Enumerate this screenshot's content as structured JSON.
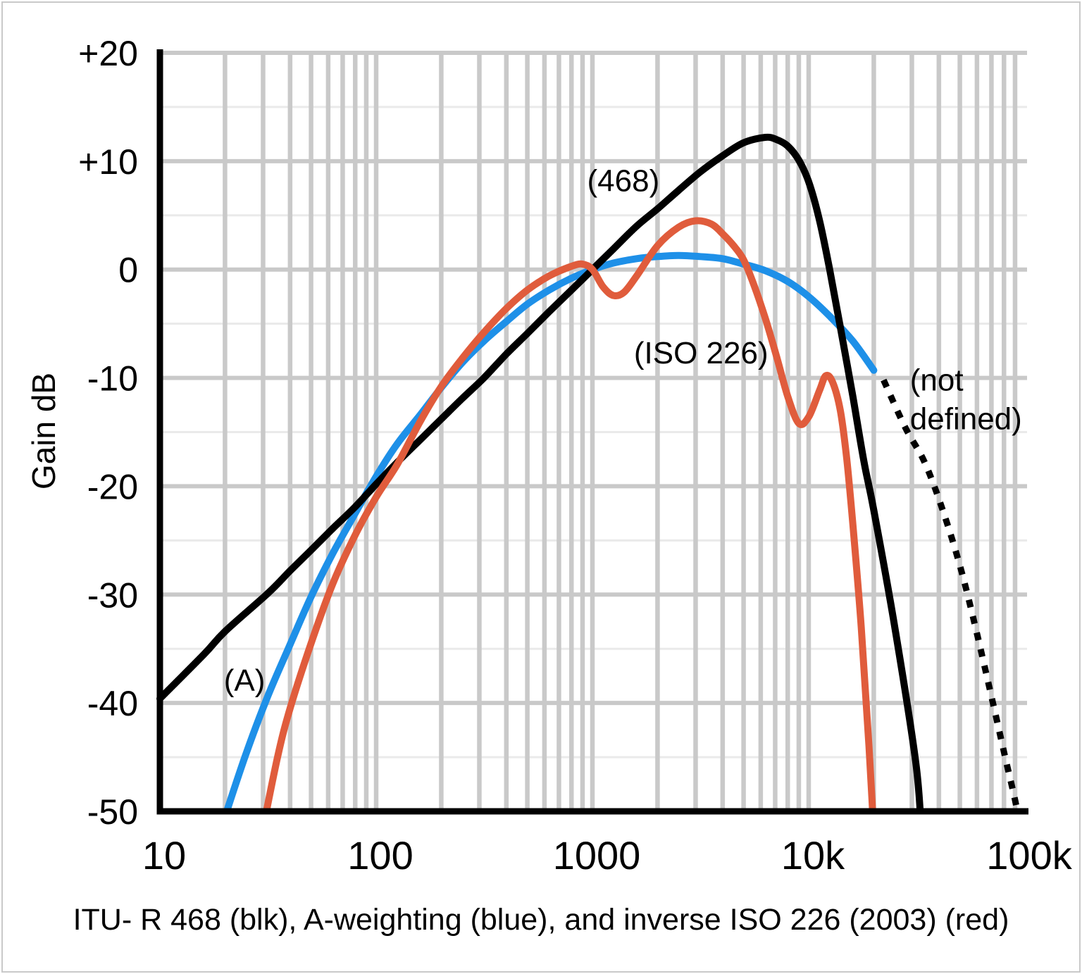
{
  "chart_data": {
    "type": "line",
    "caption": "ITU- R 468 (blk), A-weighting (blue), and inverse ISO 226 (2003) (red)",
    "ylabel": "Gain dB",
    "x_axis": {
      "scale": "log",
      "min": 10,
      "max": 100000,
      "tick_values": [
        10,
        100,
        1000,
        10000,
        100000
      ],
      "tick_labels": [
        "10",
        "100",
        "1000",
        "10k",
        "100k"
      ]
    },
    "y_axis": {
      "min": -50,
      "max": 20,
      "tick_values": [
        20,
        10,
        0,
        -10,
        -20,
        -30,
        -40,
        -50
      ],
      "tick_labels": [
        "+20",
        "+10",
        "0",
        "-10",
        "-20",
        "-30",
        "-40",
        "-50"
      ],
      "minor_values": [
        15,
        5,
        -5,
        -15,
        -25,
        -35,
        -45
      ]
    },
    "grid": {
      "on": true,
      "major_color": "#c9c9c9",
      "minor_color": "#eaeaea"
    },
    "colors": {
      "black": "#000000",
      "blue": "#1e90e8",
      "red": "#e05c3c"
    },
    "series": [
      {
        "id": "a-weighting",
        "name": "A-weighting",
        "color": "#1e90e8",
        "style": "solid",
        "points": [
          [
            19,
            -52
          ],
          [
            20,
            -50.5
          ],
          [
            25,
            -44.7
          ],
          [
            31.5,
            -39.4
          ],
          [
            40,
            -34.6
          ],
          [
            50,
            -30.2
          ],
          [
            63,
            -26.2
          ],
          [
            80,
            -22.5
          ],
          [
            100,
            -19.1
          ],
          [
            125,
            -16.1
          ],
          [
            160,
            -13.4
          ],
          [
            200,
            -10.9
          ],
          [
            250,
            -8.6
          ],
          [
            315,
            -6.6
          ],
          [
            400,
            -4.8
          ],
          [
            500,
            -3.2
          ],
          [
            630,
            -1.9
          ],
          [
            800,
            -0.8
          ],
          [
            1000,
            0
          ],
          [
            1250,
            0.6
          ],
          [
            1600,
            1.0
          ],
          [
            2000,
            1.2
          ],
          [
            2500,
            1.3
          ],
          [
            3150,
            1.2
          ],
          [
            4000,
            1.0
          ],
          [
            5000,
            0.5
          ],
          [
            6300,
            -0.1
          ],
          [
            8000,
            -1.1
          ],
          [
            10000,
            -2.5
          ],
          [
            12500,
            -4.3
          ],
          [
            16000,
            -6.6
          ],
          [
            20000,
            -9.3
          ]
        ]
      },
      {
        "id": "itu-r-468",
        "name": "ITU-R 468",
        "color": "#000000",
        "style": "solid",
        "points": [
          [
            10,
            -39.6
          ],
          [
            16,
            -35.5
          ],
          [
            20,
            -33.4
          ],
          [
            31.5,
            -29.9
          ],
          [
            40,
            -27.8
          ],
          [
            50,
            -25.9
          ],
          [
            63,
            -23.9
          ],
          [
            80,
            -21.9
          ],
          [
            100,
            -19.8
          ],
          [
            125,
            -17.8
          ],
          [
            160,
            -15.7
          ],
          [
            200,
            -13.8
          ],
          [
            250,
            -11.9
          ],
          [
            315,
            -10.0
          ],
          [
            400,
            -7.8
          ],
          [
            500,
            -5.9
          ],
          [
            630,
            -3.9
          ],
          [
            800,
            -1.9
          ],
          [
            1000,
            0
          ],
          [
            1250,
            1.9
          ],
          [
            1600,
            4.0
          ],
          [
            2000,
            5.6
          ],
          [
            2500,
            7.3
          ],
          [
            3150,
            9.0
          ],
          [
            4000,
            10.5
          ],
          [
            5000,
            11.7
          ],
          [
            6300,
            12.2
          ],
          [
            7100,
            12.0
          ],
          [
            8000,
            11.4
          ],
          [
            9000,
            10.1
          ],
          [
            10000,
            8.1
          ],
          [
            11200,
            4.6
          ],
          [
            12500,
            0
          ],
          [
            14000,
            -5.3
          ],
          [
            16000,
            -11.7
          ],
          [
            18000,
            -17.7
          ],
          [
            20000,
            -22.2
          ],
          [
            25000,
            -33
          ],
          [
            31500,
            -46
          ],
          [
            33500,
            -54
          ]
        ]
      },
      {
        "id": "inverse-iso-226",
        "name": "inverse ISO 226 (2003)",
        "color": "#e05c3c",
        "style": "solid",
        "points": [
          [
            29,
            -53
          ],
          [
            35,
            -45
          ],
          [
            40,
            -40.5
          ],
          [
            50,
            -34.5
          ],
          [
            63,
            -29
          ],
          [
            80,
            -24.5
          ],
          [
            100,
            -21
          ],
          [
            125,
            -18
          ],
          [
            160,
            -14
          ],
          [
            200,
            -10.8
          ],
          [
            250,
            -8.2
          ],
          [
            315,
            -5.8
          ],
          [
            400,
            -3.6
          ],
          [
            500,
            -1.9
          ],
          [
            630,
            -0.6
          ],
          [
            800,
            0.3
          ],
          [
            900,
            0.5
          ],
          [
            1000,
            0
          ],
          [
            1120,
            -1.6
          ],
          [
            1250,
            -2.4
          ],
          [
            1400,
            -2.1
          ],
          [
            1600,
            -0.6
          ],
          [
            2000,
            2.2
          ],
          [
            2500,
            3.9
          ],
          [
            3000,
            4.5
          ],
          [
            3550,
            4.2
          ],
          [
            4000,
            3.3
          ],
          [
            4500,
            2.2
          ],
          [
            5000,
            0.9
          ],
          [
            5600,
            -1.5
          ],
          [
            6300,
            -4.5
          ],
          [
            7100,
            -8
          ],
          [
            8000,
            -11.7
          ],
          [
            9000,
            -14.2
          ],
          [
            10000,
            -13.6
          ],
          [
            11200,
            -11.2
          ],
          [
            12000,
            -9.8
          ],
          [
            12900,
            -10.4
          ],
          [
            14000,
            -13
          ],
          [
            15000,
            -17.5
          ],
          [
            16000,
            -23.5
          ],
          [
            17500,
            -33
          ],
          [
            19000,
            -44
          ],
          [
            20500,
            -56
          ]
        ]
      },
      {
        "id": "not-defined-dotted",
        "name": "not defined (dotted extension)",
        "color": "#000000",
        "style": "dotted",
        "points": [
          [
            22200,
            -10.2
          ],
          [
            28000,
            -14.6
          ],
          [
            34400,
            -17.8
          ],
          [
            42000,
            -22.4
          ],
          [
            50800,
            -27.8
          ],
          [
            60000,
            -33.6
          ],
          [
            71300,
            -40.1
          ],
          [
            81000,
            -45
          ],
          [
            91400,
            -49.6
          ],
          [
            97000,
            -53
          ]
        ]
      }
    ],
    "annotations": [
      {
        "id": "label-468",
        "text": "(468)",
        "f": 1390,
        "db": 8.2,
        "anchor": "middle"
      },
      {
        "id": "label-iso-226",
        "text": "(ISO 226)",
        "f": 3180,
        "db": -7.7,
        "anchor": "middle"
      },
      {
        "id": "label-not-defined",
        "text": "(not\ndefined)",
        "f": 29400,
        "db": -10.2,
        "anchor": "start"
      },
      {
        "id": "label-a",
        "text": "(A)",
        "f": 24.6,
        "db": -37.9,
        "anchor": "middle"
      }
    ]
  }
}
